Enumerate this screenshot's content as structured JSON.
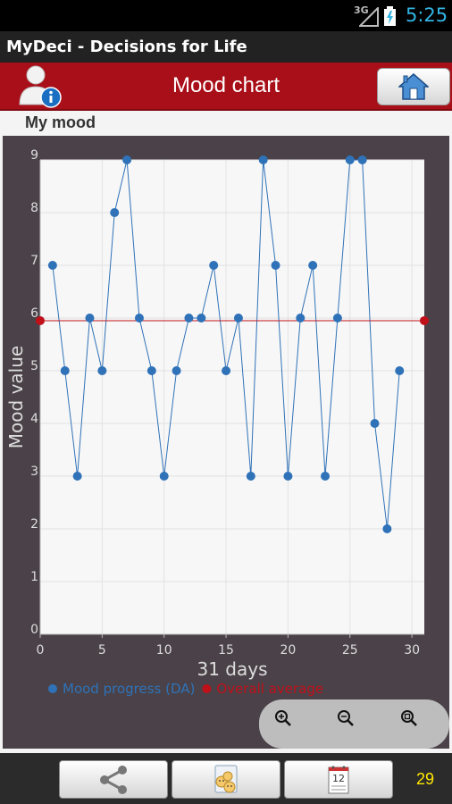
{
  "status_bar": {
    "network": "3G",
    "time": "5:25"
  },
  "app_title": "MyDeci - Decisions for Life",
  "header": {
    "title": "Mood chart"
  },
  "subtitle": "My mood",
  "chart_data": {
    "type": "line",
    "xlabel": "31 days",
    "ylabel": "Mood value",
    "xlim": [
      0,
      31
    ],
    "ylim": [
      0,
      9
    ],
    "x_ticks": [
      "0",
      "5",
      "10",
      "15",
      "20",
      "25",
      "30"
    ],
    "y_ticks": [
      "0",
      "1",
      "2",
      "3",
      "4",
      "5",
      "6",
      "7",
      "8",
      "9"
    ],
    "grid": true,
    "legend_position": "bottom-left",
    "series": [
      {
        "name": "Mood progress (DA)",
        "color": "#2f72b8",
        "x": [
          1,
          2,
          3,
          4,
          5,
          6,
          7,
          8,
          9,
          10,
          11,
          12,
          13,
          14,
          15,
          16,
          17,
          18,
          19,
          20,
          21,
          22,
          23,
          24,
          25,
          26,
          27,
          28,
          29
        ],
        "y": [
          7,
          5,
          3,
          6,
          5,
          8,
          9,
          6,
          5,
          3,
          5,
          6,
          6,
          7,
          5,
          6,
          3,
          9,
          7,
          3,
          6,
          7,
          3,
          6,
          9,
          9,
          4,
          2,
          5
        ]
      },
      {
        "name": "Overall average",
        "color": "#c0101a",
        "x": [
          0,
          31
        ],
        "y": [
          5.95,
          5.95
        ]
      }
    ]
  },
  "bottom_bar": {
    "count": "29",
    "calendar_day": "12"
  }
}
